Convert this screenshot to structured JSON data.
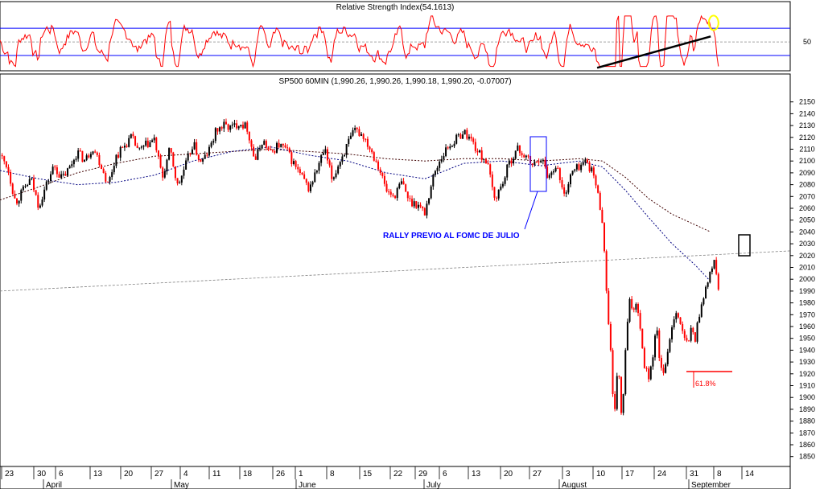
{
  "colors": {
    "background": "#ffffff",
    "rsi_line": "#ff0000",
    "rsi_bands": "#0000ff",
    "up_bar": "#000000",
    "down_bar": "#ff0000",
    "ma_short": "#000080",
    "ma_long": "#400000",
    "annotation_blue": "#0000ff",
    "fib_line": "#ff0000",
    "circle": "#ffff00"
  },
  "chart_data": [
    {
      "panel": "rsi",
      "type": "line",
      "title": "Relative Strength Index(54.1613)",
      "ylim": [
        10,
        95
      ],
      "yticks": [
        50
      ],
      "bands": [
        30,
        70
      ],
      "midline": 50,
      "trendline": {
        "from": {
          "x": 0.773,
          "y": 12
        },
        "to": {
          "x": 0.92,
          "y": 58
        }
      },
      "highlight_circle": {
        "x": 0.905,
        "y": 78
      }
    },
    {
      "panel": "price",
      "type": "candlestick",
      "title": "SP500 60MIN (1,990.26, 1,990.26, 1,990.18, 1,990.20, -0.07007)",
      "ylim": [
        1843,
        2160
      ],
      "yticks": [
        1850,
        1860,
        1870,
        1880,
        1890,
        1900,
        1910,
        1920,
        1930,
        1940,
        1950,
        1960,
        1970,
        1980,
        1990,
        2000,
        2010,
        2020,
        2030,
        2040,
        2050,
        2060,
        2070,
        2080,
        2090,
        2100,
        2110,
        2120,
        2130,
        2140,
        2150
      ],
      "x_day_labels": [
        "23",
        "30",
        "6",
        "13",
        "20",
        "27",
        "4",
        "11",
        "18",
        "26",
        "1",
        "8",
        "15",
        "22",
        "29",
        "6",
        "13",
        "20",
        "27",
        "3",
        "10",
        "17",
        "24",
        "31",
        "8",
        "14"
      ],
      "x_month_labels": [
        "April",
        "May",
        "June",
        "July",
        "August",
        "September"
      ],
      "closes": [
        {
          "t": 0.0,
          "c": 2105
        },
        {
          "t": 0.01,
          "c": 2095
        },
        {
          "t": 0.02,
          "c": 2065
        },
        {
          "t": 0.03,
          "c": 2075
        },
        {
          "t": 0.04,
          "c": 2085
        },
        {
          "t": 0.05,
          "c": 2062
        },
        {
          "t": 0.06,
          "c": 2080
        },
        {
          "t": 0.07,
          "c": 2096
        },
        {
          "t": 0.08,
          "c": 2085
        },
        {
          "t": 0.09,
          "c": 2094
        },
        {
          "t": 0.1,
          "c": 2108
        },
        {
          "t": 0.11,
          "c": 2100
        },
        {
          "t": 0.12,
          "c": 2112
        },
        {
          "t": 0.13,
          "c": 2098
        },
        {
          "t": 0.14,
          "c": 2080
        },
        {
          "t": 0.15,
          "c": 2104
        },
        {
          "t": 0.16,
          "c": 2112
        },
        {
          "t": 0.17,
          "c": 2120
        },
        {
          "t": 0.18,
          "c": 2108
        },
        {
          "t": 0.19,
          "c": 2114
        },
        {
          "t": 0.2,
          "c": 2118
        },
        {
          "t": 0.21,
          "c": 2085
        },
        {
          "t": 0.22,
          "c": 2110
        },
        {
          "t": 0.23,
          "c": 2078
        },
        {
          "t": 0.24,
          "c": 2096
        },
        {
          "t": 0.25,
          "c": 2115
        },
        {
          "t": 0.26,
          "c": 2098
        },
        {
          "t": 0.27,
          "c": 2108
        },
        {
          "t": 0.28,
          "c": 2126
        },
        {
          "t": 0.29,
          "c": 2130
        },
        {
          "t": 0.3,
          "c": 2128
        },
        {
          "t": 0.31,
          "c": 2133
        },
        {
          "t": 0.32,
          "c": 2128
        },
        {
          "t": 0.33,
          "c": 2100
        },
        {
          "t": 0.34,
          "c": 2118
        },
        {
          "t": 0.35,
          "c": 2106
        },
        {
          "t": 0.36,
          "c": 2114
        },
        {
          "t": 0.37,
          "c": 2110
        },
        {
          "t": 0.38,
          "c": 2098
        },
        {
          "t": 0.39,
          "c": 2087
        },
        {
          "t": 0.4,
          "c": 2076
        },
        {
          "t": 0.41,
          "c": 2092
        },
        {
          "t": 0.42,
          "c": 2110
        },
        {
          "t": 0.43,
          "c": 2084
        },
        {
          "t": 0.44,
          "c": 2100
        },
        {
          "t": 0.45,
          "c": 2114
        },
        {
          "t": 0.46,
          "c": 2126
        },
        {
          "t": 0.47,
          "c": 2122
        },
        {
          "t": 0.48,
          "c": 2110
        },
        {
          "t": 0.49,
          "c": 2096
        },
        {
          "t": 0.5,
          "c": 2075
        },
        {
          "t": 0.51,
          "c": 2070
        },
        {
          "t": 0.52,
          "c": 2082
        },
        {
          "t": 0.53,
          "c": 2066
        },
        {
          "t": 0.54,
          "c": 2064
        },
        {
          "t": 0.55,
          "c": 2056
        },
        {
          "t": 0.56,
          "c": 2085
        },
        {
          "t": 0.57,
          "c": 2102
        },
        {
          "t": 0.58,
          "c": 2112
        },
        {
          "t": 0.59,
          "c": 2118
        },
        {
          "t": 0.6,
          "c": 2125
        },
        {
          "t": 0.61,
          "c": 2118
        },
        {
          "t": 0.62,
          "c": 2106
        },
        {
          "t": 0.63,
          "c": 2100
        },
        {
          "t": 0.64,
          "c": 2068
        },
        {
          "t": 0.65,
          "c": 2080
        },
        {
          "t": 0.66,
          "c": 2100
        },
        {
          "t": 0.67,
          "c": 2110
        },
        {
          "t": 0.68,
          "c": 2104
        },
        {
          "t": 0.69,
          "c": 2096
        },
        {
          "t": 0.7,
          "c": 2104
        },
        {
          "t": 0.71,
          "c": 2086
        },
        {
          "t": 0.72,
          "c": 2098
        },
        {
          "t": 0.73,
          "c": 2070
        },
        {
          "t": 0.74,
          "c": 2090
        },
        {
          "t": 0.75,
          "c": 2096
        },
        {
          "t": 0.76,
          "c": 2100
        },
        {
          "t": 0.77,
          "c": 2085
        },
        {
          "t": 0.78,
          "c": 2050
        },
        {
          "t": 0.785,
          "c": 1990
        },
        {
          "t": 0.79,
          "c": 1945
        },
        {
          "t": 0.795,
          "c": 1875
        },
        {
          "t": 0.8,
          "c": 1935
        },
        {
          "t": 0.805,
          "c": 1875
        },
        {
          "t": 0.81,
          "c": 1945
        },
        {
          "t": 0.815,
          "c": 1980
        },
        {
          "t": 0.82,
          "c": 1975
        },
        {
          "t": 0.825,
          "c": 1982
        },
        {
          "t": 0.83,
          "c": 1950
        },
        {
          "t": 0.835,
          "c": 1925
        },
        {
          "t": 0.84,
          "c": 1918
        },
        {
          "t": 0.845,
          "c": 1935
        },
        {
          "t": 0.85,
          "c": 1960
        },
        {
          "t": 0.855,
          "c": 1925
        },
        {
          "t": 0.86,
          "c": 1916
        },
        {
          "t": 0.865,
          "c": 1945
        },
        {
          "t": 0.87,
          "c": 1960
        },
        {
          "t": 0.875,
          "c": 1975
        },
        {
          "t": 0.88,
          "c": 1965
        },
        {
          "t": 0.885,
          "c": 1950
        },
        {
          "t": 0.89,
          "c": 1945
        },
        {
          "t": 0.895,
          "c": 1958
        },
        {
          "t": 0.9,
          "c": 1950
        },
        {
          "t": 0.905,
          "c": 1970
        },
        {
          "t": 0.91,
          "c": 1985
        },
        {
          "t": 0.915,
          "c": 1995
        },
        {
          "t": 0.92,
          "c": 2005
        },
        {
          "t": 0.925,
          "c": 2018
        },
        {
          "t": 0.93,
          "c": 1990
        }
      ],
      "ma_short": [
        {
          "t": 0.0,
          "c": 2092
        },
        {
          "t": 0.05,
          "c": 2085
        },
        {
          "t": 0.1,
          "c": 2080
        },
        {
          "t": 0.15,
          "c": 2082
        },
        {
          "t": 0.2,
          "c": 2088
        },
        {
          "t": 0.25,
          "c": 2100
        },
        {
          "t": 0.3,
          "c": 2108
        },
        {
          "t": 0.35,
          "c": 2112
        },
        {
          "t": 0.4,
          "c": 2105
        },
        {
          "t": 0.45,
          "c": 2100
        },
        {
          "t": 0.5,
          "c": 2090
        },
        {
          "t": 0.55,
          "c": 2085
        },
        {
          "t": 0.6,
          "c": 2098
        },
        {
          "t": 0.65,
          "c": 2100
        },
        {
          "t": 0.7,
          "c": 2096
        },
        {
          "t": 0.75,
          "c": 2100
        },
        {
          "t": 0.78,
          "c": 2095
        },
        {
          "t": 0.81,
          "c": 2075
        },
        {
          "t": 0.84,
          "c": 2052
        },
        {
          "t": 0.87,
          "c": 2030
        },
        {
          "t": 0.9,
          "c": 2012
        },
        {
          "t": 0.92,
          "c": 1998
        }
      ],
      "ma_long": [
        {
          "t": 0.0,
          "c": 2067
        },
        {
          "t": 0.05,
          "c": 2078
        },
        {
          "t": 0.1,
          "c": 2090
        },
        {
          "t": 0.15,
          "c": 2098
        },
        {
          "t": 0.2,
          "c": 2104
        },
        {
          "t": 0.25,
          "c": 2106
        },
        {
          "t": 0.3,
          "c": 2108
        },
        {
          "t": 0.35,
          "c": 2110
        },
        {
          "t": 0.4,
          "c": 2108
        },
        {
          "t": 0.45,
          "c": 2106
        },
        {
          "t": 0.5,
          "c": 2102
        },
        {
          "t": 0.55,
          "c": 2100
        },
        {
          "t": 0.6,
          "c": 2102
        },
        {
          "t": 0.65,
          "c": 2102
        },
        {
          "t": 0.7,
          "c": 2100
        },
        {
          "t": 0.75,
          "c": 2102
        },
        {
          "t": 0.78,
          "c": 2100
        },
        {
          "t": 0.81,
          "c": 2086
        },
        {
          "t": 0.84,
          "c": 2068
        },
        {
          "t": 0.87,
          "c": 2055
        },
        {
          "t": 0.9,
          "c": 2046
        },
        {
          "t": 0.92,
          "c": 2040
        }
      ],
      "long_trendline": {
        "from": {
          "t": 0.0,
          "c": 1990
        },
        "to": {
          "t": 1.0,
          "c": 2024
        }
      },
      "annotations": {
        "rally_label": "RALLY PREVIO AL FOMC DE JULIO",
        "fib_label": "61.8%",
        "fib_level": 1917
      }
    }
  ]
}
